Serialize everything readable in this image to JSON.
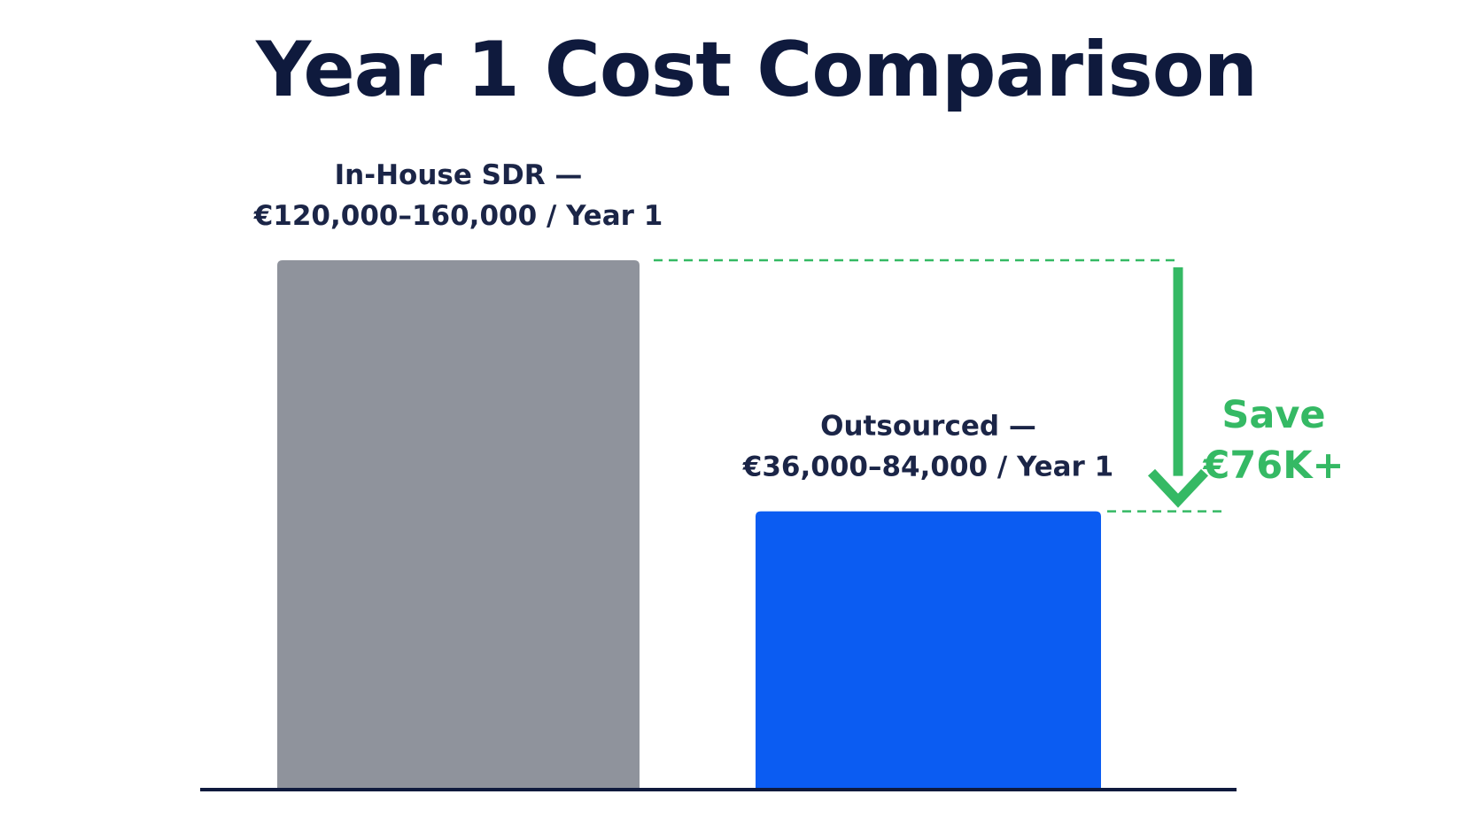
{
  "chart_data": {
    "type": "bar",
    "title": "Year 1 Cost Comparison",
    "categories": [
      "In-House SDR",
      "Outsourced"
    ],
    "series": [
      {
        "values": [
          160000,
          84000
        ],
        "ranges": [
          [
            120000,
            160000
          ],
          [
            36000,
            84000
          ]
        ]
      }
    ],
    "bar_labels": [
      [
        "In-House SDR —",
        "€120,000–160,000 / Year 1"
      ],
      [
        "Outsourced —",
        "€36,000–84,000 / Year 1"
      ]
    ],
    "annotation": {
      "lines": [
        "Save",
        "€76K+"
      ],
      "from_value": 160000,
      "to_value": 84000
    },
    "ylim": [
      0,
      160000
    ],
    "grid": false,
    "legend": "none",
    "colors": {
      "title": "#0f1a3d",
      "labels": "#1b2547",
      "bars": [
        "#8f939c",
        "#0b5cf2"
      ],
      "savings": "#35b964",
      "axis": "#0f1a3d"
    }
  }
}
